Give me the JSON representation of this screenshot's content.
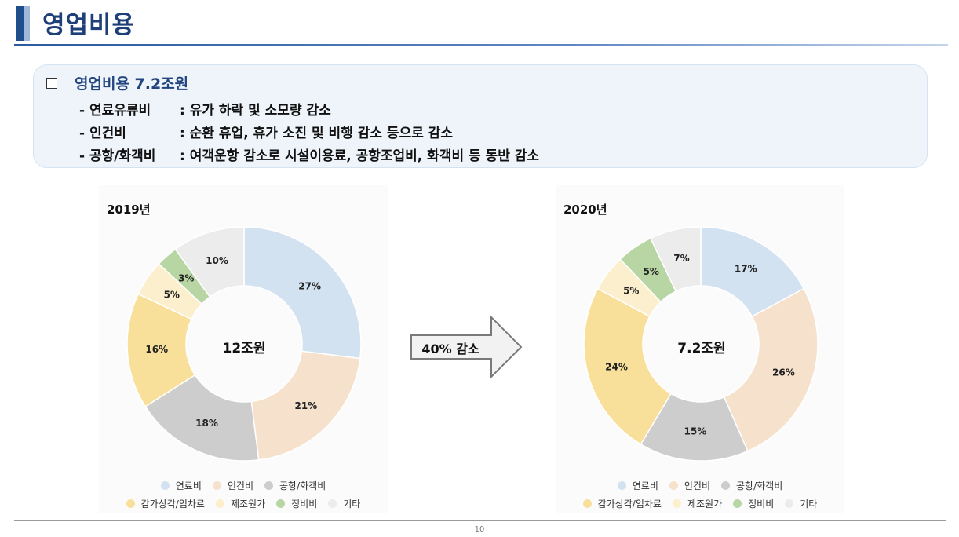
{
  "page": {
    "title": "영업비용",
    "page_number": "10"
  },
  "summary": {
    "heading": "영업비용 7.2조원",
    "lines": [
      {
        "label": "- 연료유류비",
        "text": ": 유가 하락 및 소모량 감소"
      },
      {
        "label": "- 인건비",
        "text": ": 순환 휴업, 휴가 소진 및 비행 감소 등으로 감소"
      },
      {
        "label": "- 공항/화객비",
        "text": ": 여객운항 감소로 시설이용료, 공항조업비, 화객비 등 동반 감소"
      }
    ]
  },
  "arrow": {
    "label": "40% 감소"
  },
  "colors": {
    "연료비": "#d3e2f1",
    "인건비": "#f6e2cc",
    "공항/화객비": "#cdcdcd",
    "감가상각/임차료": "#f8e09b",
    "제조원가": "#fcefcd",
    "정비비": "#b8d6a4",
    "기타": "#ececec"
  },
  "legend": {
    "row1": [
      "연료비",
      "인건비",
      "공항/화객비"
    ],
    "row2": [
      "감가상각/임차료",
      "제조원가",
      "정비비",
      "기타"
    ]
  },
  "chart_data": [
    {
      "type": "pie",
      "title": "2019년",
      "center_label": "12조원",
      "categories": [
        "연료비",
        "인건비",
        "공항/화객비",
        "감가상각/임차료",
        "제조원가",
        "정비비",
        "기타"
      ],
      "values": [
        27,
        21,
        18,
        16,
        5,
        3,
        10
      ],
      "data_labels": [
        "27%",
        "21%",
        "18%",
        "16%",
        "5%",
        "3%",
        "10%"
      ],
      "legend_position": "bottom"
    },
    {
      "type": "pie",
      "title": "2020년",
      "center_label": "7.2조원",
      "categories": [
        "연료비",
        "인건비",
        "공항/화객비",
        "감가상각/임차료",
        "제조원가",
        "정비비",
        "기타"
      ],
      "values": [
        17,
        26,
        15,
        24,
        5,
        5,
        7
      ],
      "data_labels": [
        "17%",
        "26%",
        "15%",
        "24%",
        "5%",
        "5%",
        "7%"
      ],
      "legend_position": "bottom"
    }
  ]
}
